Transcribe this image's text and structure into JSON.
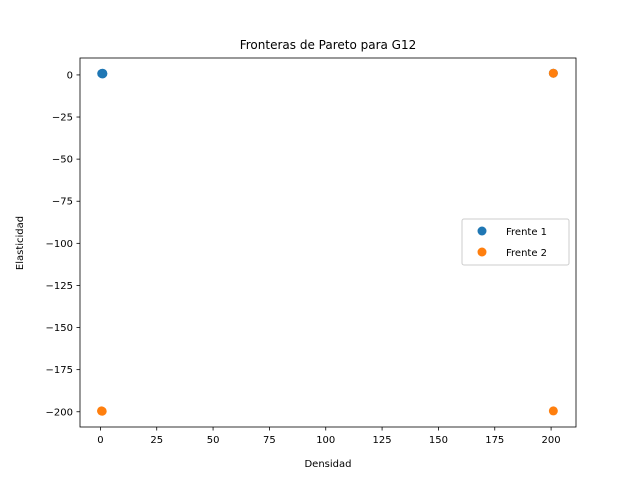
{
  "chart_data": {
    "type": "scatter",
    "title": "Fronteras de Pareto para G12",
    "xlabel": "Densidad",
    "ylabel": "Elasticidad",
    "xlim": [
      -9.05,
      211.05
    ],
    "ylim": [
      -209.05,
      10.05
    ],
    "x_ticks": [
      0,
      25,
      50,
      75,
      100,
      125,
      150,
      175,
      200
    ],
    "y_ticks": [
      0,
      -25,
      -50,
      -75,
      -100,
      -125,
      -150,
      -175,
      -200
    ],
    "x_tick_labels": [
      "0",
      "25",
      "50",
      "75",
      "100",
      "125",
      "150",
      "175",
      "200"
    ],
    "y_tick_labels": [
      "0",
      "−25",
      "−50",
      "−75",
      "−100",
      "−125",
      "−150",
      "−175",
      "−200"
    ],
    "grid": false,
    "legend_position": "center-right",
    "series": [
      {
        "name": "Frente 1",
        "color": "#1f77b4",
        "points": [
          {
            "x": 0.6,
            "y": 0.8
          },
          {
            "x": 0.9,
            "y": 0.6
          },
          {
            "x": 1.0,
            "y": 1.0
          },
          {
            "x": 0.7,
            "y": 0.9
          },
          {
            "x": 1.1,
            "y": 0.7
          },
          {
            "x": 201.0,
            "y": 1.0
          }
        ]
      },
      {
        "name": "Frente 2",
        "color": "#ff7f0e",
        "points": [
          {
            "x": 201.0,
            "y": 1.0
          },
          {
            "x": 0.5,
            "y": -199.5
          },
          {
            "x": 0.8,
            "y": -199.7
          },
          {
            "x": 201.0,
            "y": -199.5
          }
        ]
      }
    ]
  }
}
